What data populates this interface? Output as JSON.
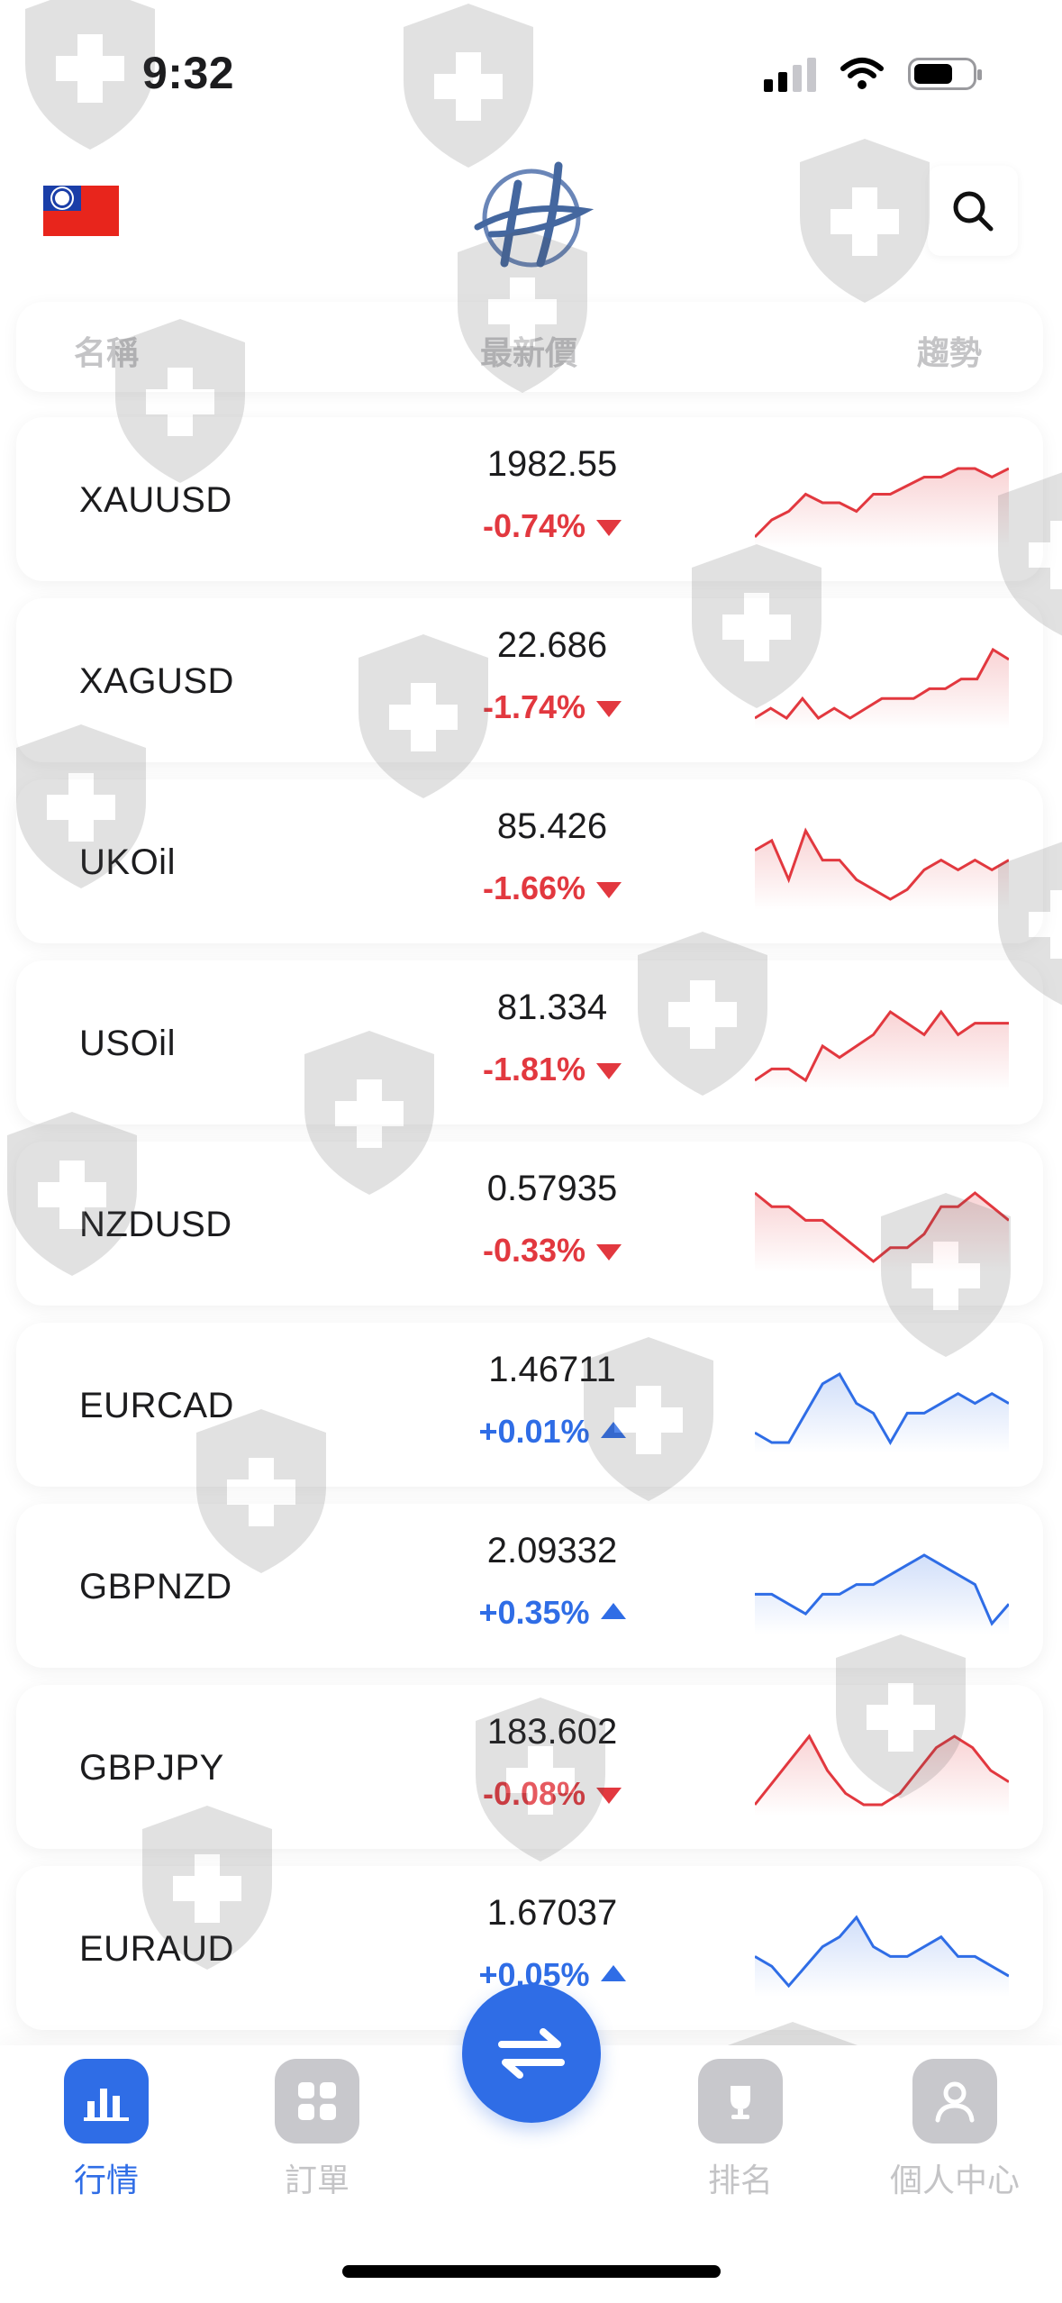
{
  "status_bar": {
    "time": "9:32"
  },
  "header": {
    "flag": "taiwan-flag",
    "logo": "brand-logo",
    "search_icon": "search-icon"
  },
  "columns": {
    "name": "名稱",
    "price": "最新價",
    "trend": "趨勢"
  },
  "colors": {
    "down": "#e2383f",
    "up": "#2f6de6",
    "accent": "#2f6de6"
  },
  "quotes": [
    {
      "symbol": "XAUUSD",
      "price": "1982.55",
      "change": "-0.74%",
      "direction": "down",
      "trend": [
        4,
        6,
        7,
        9,
        8,
        8,
        7,
        9,
        9,
        10,
        11,
        11,
        12,
        12,
        11,
        12
      ]
    },
    {
      "symbol": "XAGUSD",
      "price": "22.686",
      "change": "-1.74%",
      "direction": "down",
      "trend": [
        5,
        6,
        5,
        7,
        5,
        6,
        5,
        6,
        7,
        7,
        7,
        8,
        8,
        9,
        9,
        12,
        11
      ]
    },
    {
      "symbol": "UKOil",
      "price": "85.426",
      "change": "-1.66%",
      "direction": "down",
      "trend": [
        11,
        12,
        8,
        13,
        10,
        10,
        8,
        7,
        6,
        7,
        9,
        10,
        9,
        10,
        9,
        10
      ]
    },
    {
      "symbol": "USOil",
      "price": "81.334",
      "change": "-1.81%",
      "direction": "down",
      "trend": [
        5,
        6,
        6,
        5,
        8,
        7,
        8,
        9,
        11,
        10,
        9,
        11,
        9,
        10,
        10,
        10
      ]
    },
    {
      "symbol": "NZDUSD",
      "price": "0.57935",
      "change": "-0.33%",
      "direction": "down",
      "trend": [
        12,
        11,
        11,
        10,
        10,
        9,
        8,
        7,
        8,
        8,
        9,
        11,
        11,
        12,
        11,
        10
      ]
    },
    {
      "symbol": "EURCAD",
      "price": "1.46711",
      "change": "+0.01%",
      "direction": "up",
      "trend": [
        5,
        4,
        4,
        7,
        10,
        11,
        8,
        7,
        4,
        7,
        7,
        8,
        9,
        8,
        9,
        8
      ]
    },
    {
      "symbol": "GBPNZD",
      "price": "2.09332",
      "change": "+0.35%",
      "direction": "up",
      "trend": [
        8,
        8,
        7,
        6,
        8,
        8,
        9,
        9,
        10,
        11,
        12,
        11,
        10,
        9,
        5,
        7
      ]
    },
    {
      "symbol": "GBPJPY",
      "price": "183.602",
      "change": "-0.08%",
      "direction": "down",
      "trend": [
        6,
        8,
        10,
        12,
        9,
        7,
        6,
        6,
        7,
        9,
        11,
        12,
        11,
        9,
        8
      ]
    },
    {
      "symbol": "EURAUD",
      "price": "1.67037",
      "change": "+0.05%",
      "direction": "up",
      "trend": [
        9,
        8,
        6,
        8,
        10,
        11,
        13,
        10,
        9,
        9,
        10,
        11,
        9,
        9,
        8,
        7
      ]
    }
  ],
  "tabs": [
    {
      "label": "行情",
      "icon": "bar-chart-icon",
      "active": true
    },
    {
      "label": "訂單",
      "icon": "grid-icon",
      "active": false
    },
    {
      "label": "排名",
      "icon": "ranking-icon",
      "active": false
    },
    {
      "label": "個人中心",
      "icon": "user-icon",
      "active": false
    }
  ],
  "fab": {
    "icon": "swap-arrows-icon"
  }
}
